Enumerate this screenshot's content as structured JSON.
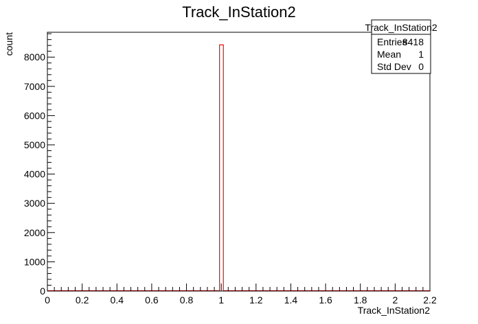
{
  "chart_data": {
    "type": "bar",
    "title": "Track_InStation2",
    "xlabel": "Track_InStation2",
    "ylabel": "count",
    "xlim": [
      0,
      2.2
    ],
    "ylim": [
      0,
      8850
    ],
    "x_ticks": [
      0,
      0.2,
      0.4,
      0.6,
      0.8,
      1,
      1.2,
      1.4,
      1.6,
      1.8,
      2,
      2.2
    ],
    "x_tick_labels": [
      "0",
      "0.2",
      "0.4",
      "0.6",
      "0.8",
      "1",
      "1.2",
      "1.4",
      "1.6",
      "1.8",
      "2",
      "2.2"
    ],
    "y_ticks": [
      0,
      1000,
      2000,
      3000,
      4000,
      5000,
      6000,
      7000,
      8000
    ],
    "y_tick_labels": [
      "0",
      "1000",
      "2000",
      "3000",
      "4000",
      "5000",
      "6000",
      "7000",
      "8000"
    ],
    "bins": {
      "n": 100,
      "low": 0,
      "high": 2.2
    },
    "bars": [
      {
        "x_low": 0.99,
        "x_high": 1.012,
        "value": 8418
      }
    ],
    "line_color": "#ff0000",
    "grid": false,
    "stats_box": {
      "title": "Track_InStation2",
      "rows": [
        {
          "label": "Entries",
          "value": "8418"
        },
        {
          "label": "Mean",
          "value": "1"
        },
        {
          "label": "Std Dev",
          "value": "0"
        }
      ],
      "placement": "top-right"
    }
  }
}
